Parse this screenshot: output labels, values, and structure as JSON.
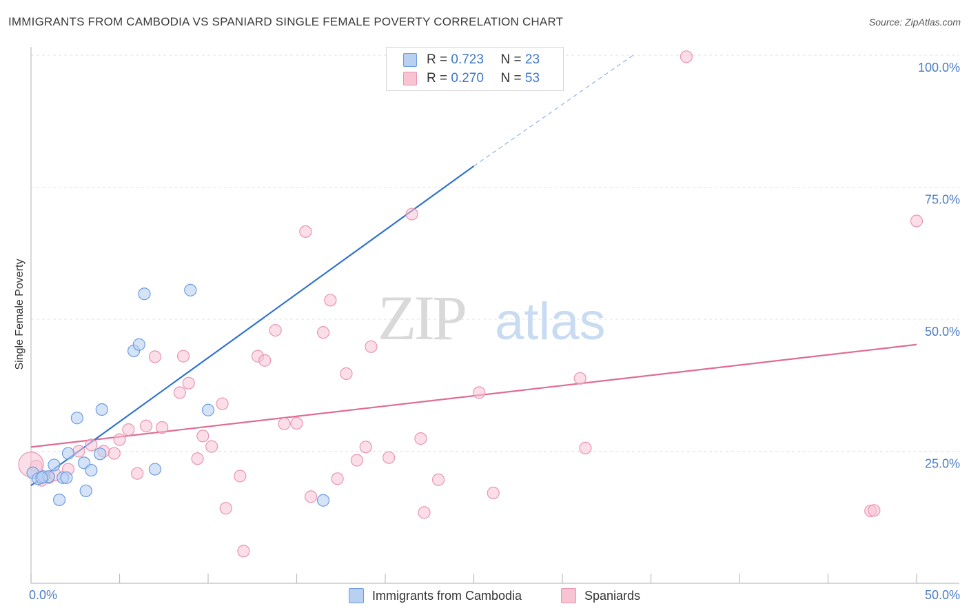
{
  "title": "IMMIGRANTS FROM CAMBODIA VS SPANIARD SINGLE FEMALE POVERTY CORRELATION CHART",
  "source": "Source: ZipAtlas.com",
  "watermark": {
    "zip": "ZIP",
    "atlas": "atlas"
  },
  "legend": {
    "rows": [
      {
        "r_label": "R =",
        "r_value": "0.723",
        "n_label": "N =",
        "n_value": "23"
      },
      {
        "r_label": "R =",
        "r_value": "0.270",
        "n_label": "N =",
        "n_value": "53"
      }
    ]
  },
  "bottom_legend": [
    "Immigrants from Cambodia",
    "Spaniards"
  ],
  "colors": {
    "blue_fill": "#b8d0f2",
    "blue_stroke": "#6b9be0",
    "blue_line": "#2f72cf",
    "pink_fill": "#f8c3d3",
    "pink_stroke": "#e895b0",
    "pink_line": "#e06b94",
    "axis_text": "#4a7cc4"
  },
  "chart_data": {
    "type": "scatter",
    "xlabel": "",
    "ylabel": "Single Female Poverty",
    "xlim": [
      0,
      50
    ],
    "ylim": [
      0,
      100
    ],
    "x_ticks": [
      "0.0%",
      "50.0%"
    ],
    "y_ticks": [
      {
        "value": 25,
        "label": "25.0%"
      },
      {
        "value": 50,
        "label": "50.0%"
      },
      {
        "value": 75,
        "label": "75.0%"
      },
      {
        "value": 100,
        "label": "100.0%"
      }
    ],
    "grid": true,
    "series": [
      {
        "name": "Immigrants from Cambodia",
        "color": "#6b9be0",
        "points": [
          [
            0.1,
            20.9
          ],
          [
            0.4,
            19.8
          ],
          [
            0.7,
            20.2
          ],
          [
            1.3,
            22.4
          ],
          [
            1.6,
            15.8
          ],
          [
            1.8,
            20.0
          ],
          [
            2.1,
            24.6
          ],
          [
            2.6,
            31.3
          ],
          [
            3.0,
            22.8
          ],
          [
            3.1,
            17.5
          ],
          [
            3.4,
            21.4
          ],
          [
            3.9,
            24.5
          ],
          [
            4.0,
            32.9
          ],
          [
            5.8,
            44.0
          ],
          [
            6.1,
            45.2
          ],
          [
            6.4,
            54.8
          ],
          [
            7.0,
            21.6
          ],
          [
            9.0,
            55.5
          ],
          [
            10.0,
            32.8
          ],
          [
            16.5,
            15.7
          ],
          [
            1.0,
            20.2
          ],
          [
            2.0,
            20.0
          ],
          [
            0.6,
            20.0
          ]
        ],
        "trend": {
          "x0": 0.0,
          "y0": 18.5,
          "x1": 25.0,
          "y1": 79.0,
          "dash_to_x": 34.0,
          "dash_to_y": 100.0
        }
      },
      {
        "name": "Spaniards",
        "color": "#e895b0",
        "points": [
          [
            0.3,
            22.2
          ],
          [
            0.6,
            19.5
          ],
          [
            1.0,
            20.0
          ],
          [
            1.4,
            20.5
          ],
          [
            2.1,
            21.6
          ],
          [
            2.7,
            25.0
          ],
          [
            3.4,
            26.2
          ],
          [
            4.1,
            25.0
          ],
          [
            4.7,
            24.6
          ],
          [
            5.0,
            27.2
          ],
          [
            5.5,
            29.1
          ],
          [
            6.0,
            20.8
          ],
          [
            6.5,
            29.8
          ],
          [
            7.0,
            42.9
          ],
          [
            7.4,
            29.5
          ],
          [
            8.4,
            36.1
          ],
          [
            8.6,
            43.0
          ],
          [
            8.9,
            37.9
          ],
          [
            9.4,
            23.6
          ],
          [
            9.7,
            27.9
          ],
          [
            10.2,
            25.9
          ],
          [
            10.8,
            34.0
          ],
          [
            11.0,
            14.2
          ],
          [
            11.8,
            20.3
          ],
          [
            12.0,
            6.1
          ],
          [
            12.8,
            43.0
          ],
          [
            13.2,
            42.2
          ],
          [
            13.8,
            47.9
          ],
          [
            14.3,
            30.2
          ],
          [
            15.0,
            30.3
          ],
          [
            15.5,
            66.6
          ],
          [
            15.8,
            16.4
          ],
          [
            16.5,
            47.5
          ],
          [
            16.9,
            53.6
          ],
          [
            17.3,
            19.8
          ],
          [
            17.8,
            39.7
          ],
          [
            18.4,
            23.3
          ],
          [
            18.9,
            25.8
          ],
          [
            19.2,
            44.8
          ],
          [
            20.2,
            23.8
          ],
          [
            21.5,
            69.9
          ],
          [
            22.0,
            27.4
          ],
          [
            22.2,
            13.4
          ],
          [
            23.0,
            19.6
          ],
          [
            25.3,
            36.1
          ],
          [
            26.1,
            17.1
          ],
          [
            31.0,
            38.8
          ],
          [
            31.3,
            25.6
          ],
          [
            37.0,
            99.7
          ],
          [
            47.4,
            13.7
          ],
          [
            47.6,
            13.8
          ],
          [
            50.0,
            68.6
          ],
          [
            0.0,
            22.5
          ]
        ],
        "trend": {
          "x0": 0.0,
          "y0": 25.8,
          "x1": 50.0,
          "y1": 45.2
        }
      }
    ]
  }
}
